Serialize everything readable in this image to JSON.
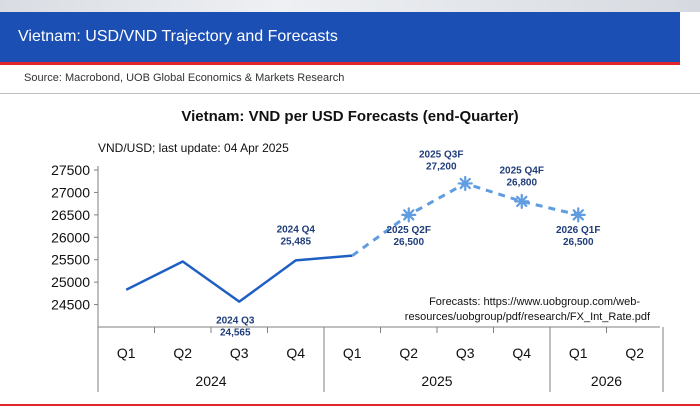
{
  "header": {
    "title": "Vietnam: USD/VND Trajectory and Forecasts",
    "source": "Source: Macrobond, UOB Global Economics & Markets Research"
  },
  "colors": {
    "banner": "#1b4fb4",
    "accent_red": "#e0262b",
    "actual_line": "#1f5fc4",
    "forecast_line": "#5f9ce0",
    "forecast_marker": "#5f9ce0",
    "label_text": "#1f3d7a"
  },
  "chart_data": {
    "type": "line",
    "title": "Vietnam: VND per USD Forecasts (end-Quarter)",
    "subtitle": "VND/USD; last update: 04 Apr 2025",
    "ylim": [
      24000,
      27500
    ],
    "yticks": [
      24500,
      25000,
      25500,
      26000,
      26500,
      27000,
      27500
    ],
    "quarters": [
      "Q1",
      "Q2",
      "Q3",
      "Q4",
      "Q1",
      "Q2",
      "Q3",
      "Q4",
      "Q1",
      "Q2"
    ],
    "years": [
      {
        "label": "2024",
        "start": 0,
        "end": 3
      },
      {
        "label": "2025",
        "start": 4,
        "end": 7
      },
      {
        "label": "2026",
        "start": 8,
        "end": 9
      }
    ],
    "series": [
      {
        "name": "Actual",
        "style": "solid",
        "points": [
          {
            "x": 0.0,
            "y": 24830
          },
          {
            "x": 1.0,
            "y": 25460
          },
          {
            "x": 2.0,
            "y": 24565
          },
          {
            "x": 3.0,
            "y": 25485
          },
          {
            "x": 4.0,
            "y": 25590
          }
        ]
      },
      {
        "name": "Forecast",
        "style": "dashed",
        "points": [
          {
            "x": 4.0,
            "y": 25590
          },
          {
            "x": 5.0,
            "y": 26500
          },
          {
            "x": 6.0,
            "y": 27200
          },
          {
            "x": 7.0,
            "y": 26800
          },
          {
            "x": 8.0,
            "y": 26500
          }
        ],
        "markers": [
          1,
          2,
          3,
          4
        ]
      }
    ],
    "annotations": [
      {
        "line1": "2024 Q3",
        "line2": "24,565",
        "x": 2.0,
        "y": 24565,
        "anchor": "below-left"
      },
      {
        "line1": "2024 Q4",
        "line2": "25,485",
        "x": 3.0,
        "y": 25485,
        "anchor": "above"
      },
      {
        "line1": "2025 Q2F",
        "line2": "26,500",
        "x": 5.0,
        "y": 26500,
        "anchor": "below"
      },
      {
        "line1": "2025 Q3F",
        "line2": "27,200",
        "x": 6.0,
        "y": 27200,
        "anchor": "above-left"
      },
      {
        "line1": "2025 Q4F",
        "line2": "26,800",
        "x": 7.0,
        "y": 26800,
        "anchor": "above"
      },
      {
        "line1": "2026 Q1F",
        "line2": "26,500",
        "x": 8.0,
        "y": 26500,
        "anchor": "below"
      }
    ],
    "note": {
      "line1": "Forecasts: https://www.uobgroup.com/web-",
      "line2": "resources/uobgroup/pdf/research/FX_Int_Rate.pdf"
    }
  }
}
